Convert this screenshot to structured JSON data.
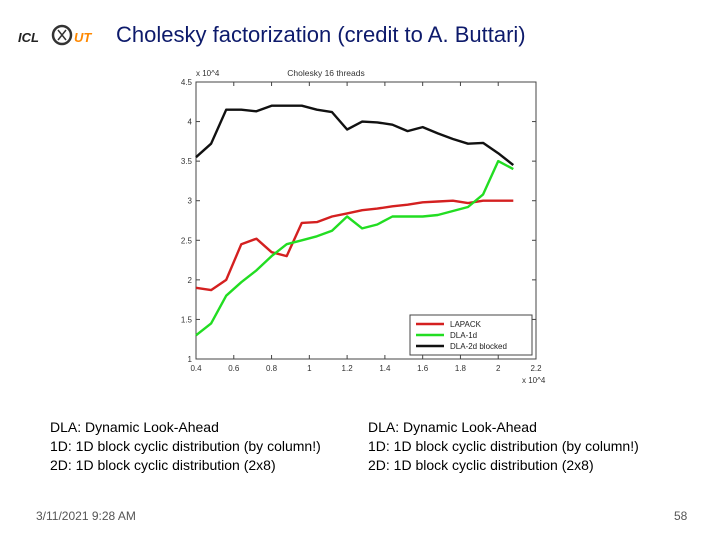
{
  "slide": {
    "title": "Cholesky factorization (credit to A. Buttari)",
    "logo_text": "ICL UT",
    "date": "3/11/2021 9:28 AM",
    "page_number": "58",
    "notes_left": [
      "DLA: Dynamic Look-Ahead",
      "1D: 1D block cyclic distribution (by column!)",
      "2D: 1D block cyclic distribution (2x8)"
    ],
    "notes_right": [
      "DLA: Dynamic Look-Ahead",
      "1D: 1D block cyclic distribution (by column!)",
      "2D: 1D block cyclic distribution (2x8)"
    ]
  },
  "chart_data": {
    "type": "line",
    "title": "Cholesky 16 threads",
    "xlabel": "",
    "ylabel": "",
    "x_exponent_label": "x 10^4",
    "y_exponent_label": "x 10^4",
    "xlim": [
      0.4,
      2.2
    ],
    "ylim": [
      1,
      4.5
    ],
    "xticks": [
      0.4,
      0.6,
      0.8,
      1,
      1.2,
      1.4,
      1.6,
      1.8,
      2,
      2.2
    ],
    "xtick_labels": [
      "0.4",
      "0.6",
      "0.8",
      "1",
      "1.2",
      "1.4",
      "1.6",
      "1.8",
      "2",
      "2.2"
    ],
    "yticks": [
      1,
      1.5,
      2,
      2.5,
      3,
      3.5,
      4,
      4.5
    ],
    "ytick_labels": [
      "1",
      "1.5",
      "2",
      "2.5",
      "3",
      "3.5",
      "4",
      "4.5"
    ],
    "legend_position": "bottom-right",
    "series": [
      {
        "name": "LAPACK",
        "color": "#d42020",
        "x": [
          0.4,
          0.48,
          0.56,
          0.64,
          0.72,
          0.8,
          0.88,
          0.96,
          1.04,
          1.12,
          1.2,
          1.28,
          1.36,
          1.44,
          1.52,
          1.6,
          1.68,
          1.76,
          1.84,
          1.92,
          2.0,
          2.08
        ],
        "y": [
          1.9,
          1.87,
          2.0,
          2.45,
          2.52,
          2.35,
          2.3,
          2.72,
          2.73,
          2.8,
          2.84,
          2.88,
          2.9,
          2.93,
          2.95,
          2.98,
          2.99,
          3.0,
          2.97,
          3.0,
          3.0,
          3.0
        ]
      },
      {
        "name": "DLA-1d",
        "color": "#22dd22",
        "x": [
          0.4,
          0.48,
          0.56,
          0.64,
          0.72,
          0.8,
          0.88,
          0.96,
          1.04,
          1.12,
          1.2,
          1.28,
          1.36,
          1.44,
          1.52,
          1.6,
          1.68,
          1.76,
          1.84,
          1.92,
          2.0,
          2.08
        ],
        "y": [
          1.3,
          1.45,
          1.8,
          1.97,
          2.12,
          2.3,
          2.45,
          2.5,
          2.55,
          2.62,
          2.8,
          2.65,
          2.7,
          2.8,
          2.8,
          2.8,
          2.82,
          2.87,
          2.92,
          3.08,
          3.5,
          3.4
        ]
      },
      {
        "name": "DLA-2d blocked",
        "color": "#111111",
        "x": [
          0.4,
          0.48,
          0.56,
          0.64,
          0.72,
          0.8,
          0.88,
          0.96,
          1.04,
          1.12,
          1.2,
          1.28,
          1.36,
          1.44,
          1.52,
          1.6,
          1.68,
          1.76,
          1.84,
          1.92,
          2.0,
          2.08
        ],
        "y": [
          3.55,
          3.72,
          4.15,
          4.15,
          4.13,
          4.2,
          4.2,
          4.2,
          4.15,
          4.12,
          3.9,
          4.0,
          3.99,
          3.96,
          3.88,
          3.93,
          3.85,
          3.78,
          3.72,
          3.73,
          3.6,
          3.45
        ]
      }
    ]
  }
}
